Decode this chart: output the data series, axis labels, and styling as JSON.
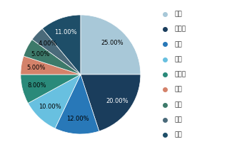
{
  "labels": [
    "通用",
    "飞利浦",
    "东芝",
    "日立",
    "西门子",
    "迈瑞",
    "百盛",
    "三星",
    "其他"
  ],
  "values": [
    25.0,
    20.0,
    12.0,
    10.0,
    8.0,
    5.0,
    5.0,
    4.0,
    11.0
  ],
  "colors": [
    "#a8c8d8",
    "#1a3d5c",
    "#2878b8",
    "#68c0e0",
    "#2a8a7a",
    "#d4826a",
    "#3d7a6a",
    "#4a6a7a",
    "#1e4e68"
  ],
  "pct_labels": [
    "25.00%",
    "20.00%",
    "12.00%",
    "10.00%",
    "8.00%",
    "5.00%",
    "5.00%",
    "4.00%",
    "11.00%"
  ],
  "startangle": 90,
  "legend_fontsize": 6.5,
  "label_fontsize": 6.0,
  "label_colors": [
    "black",
    "white",
    "black",
    "black",
    "black",
    "black",
    "black",
    "black",
    "white"
  ],
  "legend_dot_colors": [
    "#a8c8d8",
    "#1a3d5c",
    "#2878b8",
    "#68c0e0",
    "#2a8a7a",
    "#d4826a",
    "#3d7a6a",
    "#4a6a7a",
    "#1e4e68"
  ]
}
